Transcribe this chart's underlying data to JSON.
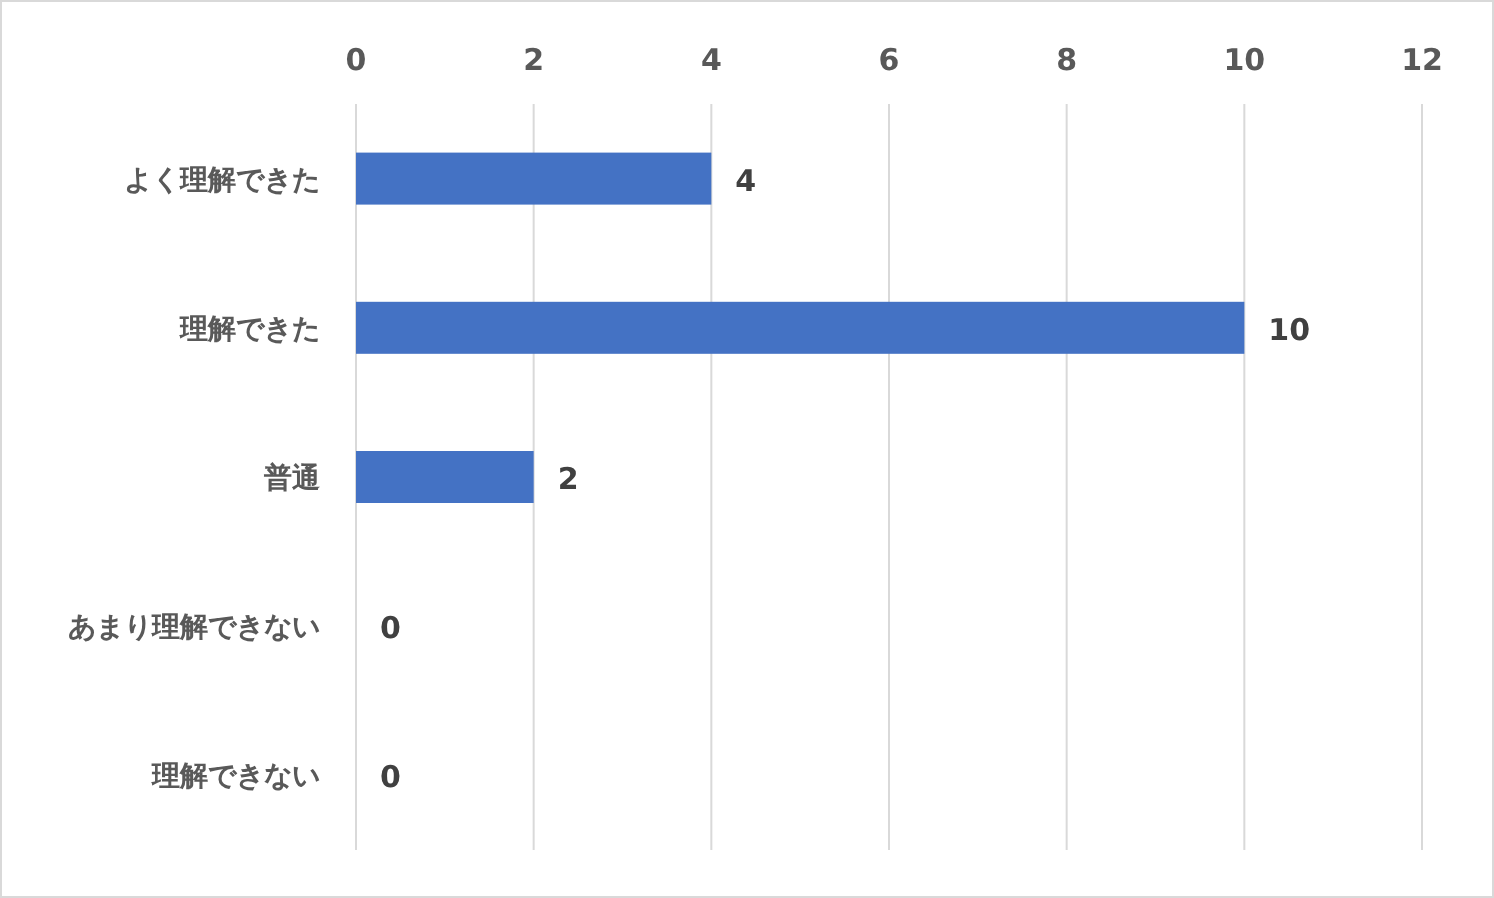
{
  "chart_data": {
    "type": "bar",
    "orientation": "horizontal",
    "categories": [
      "よく理解できた",
      "理解できた",
      "普通",
      "あまり理解できない",
      "理解できない"
    ],
    "values": [
      4,
      10,
      2,
      0,
      0
    ],
    "color": "#4472c4",
    "xlim": [
      0,
      12
    ],
    "xticks": [
      0,
      2,
      4,
      6,
      8,
      10,
      12
    ],
    "grid": "x",
    "data_labels": true
  }
}
